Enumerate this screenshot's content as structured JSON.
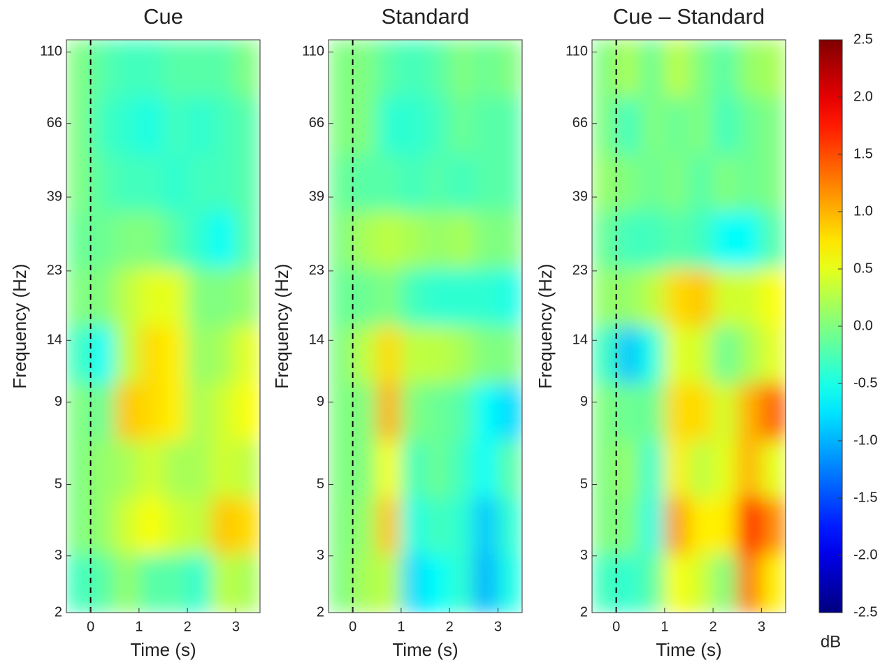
{
  "chart_data": [
    {
      "type": "heatmap",
      "title": "Cue",
      "xlabel": "Time (s)",
      "ylabel": "Frequency (Hz)",
      "xlim": [
        -0.5,
        3.5
      ],
      "xticks": [
        0,
        1,
        2,
        3
      ],
      "ylim": [
        2,
        120
      ],
      "yticks": [
        2,
        3,
        5,
        9,
        14,
        23,
        39,
        66,
        110
      ],
      "yscale": "log",
      "vline": 0,
      "colormap": "jet",
      "clim": [
        -2.5,
        2.5
      ],
      "x": [
        -0.25,
        0.25,
        0.75,
        1.25,
        1.75,
        2.25,
        2.75,
        3.25
      ],
      "y": [
        2.5,
        3.7,
        5.6,
        8.4,
        12.7,
        19,
        29,
        43,
        65,
        98
      ],
      "z": [
        [
          -0.3,
          -0.2,
          0.1,
          -0.2,
          -0.2,
          -0.4,
          0.3,
          0.2
        ],
        [
          0,
          0.1,
          0.4,
          0.6,
          0.4,
          0.3,
          0.9,
          0.8
        ],
        [
          0,
          0.1,
          0.2,
          0.4,
          0.2,
          0.2,
          0.4,
          0.3
        ],
        [
          0,
          -0.1,
          0.9,
          0.8,
          0.7,
          0.2,
          0.4,
          0.6
        ],
        [
          -0.3,
          -0.6,
          0.3,
          0.8,
          0.7,
          0.1,
          0.2,
          0.5
        ],
        [
          0,
          0,
          0.3,
          0.5,
          0.5,
          0,
          0,
          0.1
        ],
        [
          -0.1,
          -0.1,
          0,
          0,
          -0.2,
          -0.4,
          -0.6,
          -0.2
        ],
        [
          0,
          -0.2,
          -0.3,
          -0.3,
          -0.4,
          -0.3,
          -0.3,
          -0.2
        ],
        [
          0,
          -0.3,
          -0.4,
          -0.5,
          -0.3,
          -0.4,
          -0.3,
          -0.2
        ],
        [
          0,
          -0.2,
          -0.3,
          -0.3,
          -0.2,
          -0.2,
          -0.2,
          0
        ]
      ]
    },
    {
      "type": "heatmap",
      "title": "Standard",
      "xlabel": "Time (s)",
      "ylabel": "Frequency (Hz)",
      "xlim": [
        -0.5,
        3.5
      ],
      "xticks": [
        0,
        1,
        2,
        3
      ],
      "ylim": [
        2,
        120
      ],
      "yticks": [
        2,
        3,
        5,
        9,
        14,
        23,
        39,
        66,
        110
      ],
      "yscale": "log",
      "vline": 0,
      "colormap": "jet",
      "clim": [
        -2.5,
        2.5
      ],
      "x": [
        -0.25,
        0.25,
        0.75,
        1.25,
        1.75,
        2.25,
        2.75,
        3.25
      ],
      "y": [
        2.5,
        3.7,
        5.6,
        8.4,
        12.7,
        19,
        29,
        43,
        65,
        98
      ],
      "z": [
        [
          0,
          0.2,
          0.3,
          -0.8,
          -0.6,
          -0.4,
          -1.0,
          -0.5
        ],
        [
          0,
          0.1,
          0.9,
          -0.5,
          -0.3,
          -0.4,
          -0.9,
          -0.4
        ],
        [
          0,
          0,
          0.6,
          -0.3,
          -0.1,
          -0.3,
          -0.6,
          -0.2
        ],
        [
          0,
          0,
          1.0,
          0,
          -0.1,
          -0.2,
          -0.6,
          -0.8
        ],
        [
          0,
          0.3,
          0.8,
          0.3,
          0.3,
          0.2,
          0,
          0
        ],
        [
          -0.1,
          -0.1,
          0,
          -0.3,
          -0.4,
          -0.4,
          -0.4,
          -0.5
        ],
        [
          0,
          0.2,
          0.3,
          0.2,
          0.1,
          0.2,
          0,
          0
        ],
        [
          -0.1,
          -0.2,
          -0.2,
          -0.3,
          -0.2,
          -0.3,
          -0.2,
          -0.2
        ],
        [
          0,
          0,
          -0.4,
          -0.4,
          -0.3,
          -0.1,
          -0.2,
          -0.2
        ],
        [
          0,
          0,
          -0.2,
          -0.3,
          -0.2,
          0,
          -0.1,
          0
        ]
      ]
    },
    {
      "type": "heatmap",
      "title": "Cue – Standard",
      "xlabel": "Time (s)",
      "ylabel": "Frequency (Hz)",
      "xlim": [
        -0.5,
        3.5
      ],
      "xticks": [
        0,
        1,
        2,
        3
      ],
      "ylim": [
        2,
        120
      ],
      "yticks": [
        2,
        3,
        5,
        9,
        14,
        23,
        39,
        66,
        110
      ],
      "yscale": "log",
      "vline": 0,
      "colormap": "jet",
      "clim": [
        -2.5,
        2.5
      ],
      "x": [
        -0.25,
        0.25,
        0.75,
        1.25,
        1.75,
        2.25,
        2.75,
        3.25
      ],
      "y": [
        2.5,
        3.7,
        5.6,
        8.4,
        12.7,
        19,
        29,
        43,
        65,
        98
      ],
      "z": [
        [
          -0.3,
          -0.4,
          -0.2,
          0.6,
          0.4,
          0,
          1.3,
          0.7
        ],
        [
          0,
          0,
          -0.5,
          1.1,
          0.7,
          0.7,
          1.8,
          1.2
        ],
        [
          0,
          0.1,
          -0.4,
          0.7,
          0.3,
          0.5,
          1.0,
          0.5
        ],
        [
          0,
          -0.1,
          -0.1,
          0.8,
          0.8,
          0.4,
          1.0,
          1.4
        ],
        [
          -0.3,
          -0.9,
          -0.5,
          0.5,
          0.4,
          -0.1,
          0.2,
          0.5
        ],
        [
          0.1,
          0.1,
          0.3,
          0.8,
          0.9,
          0.4,
          0.4,
          0.6
        ],
        [
          -0.1,
          -0.3,
          -0.3,
          -0.2,
          -0.3,
          -0.6,
          -0.6,
          -0.2
        ],
        [
          0.1,
          0,
          -0.1,
          0,
          -0.2,
          0,
          -0.1,
          0
        ],
        [
          0,
          -0.3,
          0,
          -0.1,
          0,
          -0.3,
          -0.1,
          0
        ],
        [
          0,
          0.2,
          -0.1,
          0.3,
          0,
          -0.2,
          0.1,
          0.2
        ]
      ]
    },
    {
      "type": "colorbar",
      "label": "dB",
      "colormap": "jet",
      "lim": [
        -2.5,
        2.5
      ],
      "ticks": [
        -2.5,
        {
          "value": -2,
          "label": "-2.0"
        },
        -1.5,
        {
          "value": -1,
          "label": "-1.0"
        },
        -0.5,
        {
          "value": 0,
          "label": "0.0"
        },
        0.5,
        {
          "value": 1,
          "label": "1.0"
        },
        1.5,
        {
          "value": 2,
          "label": "2.0"
        },
        2.5
      ]
    }
  ]
}
